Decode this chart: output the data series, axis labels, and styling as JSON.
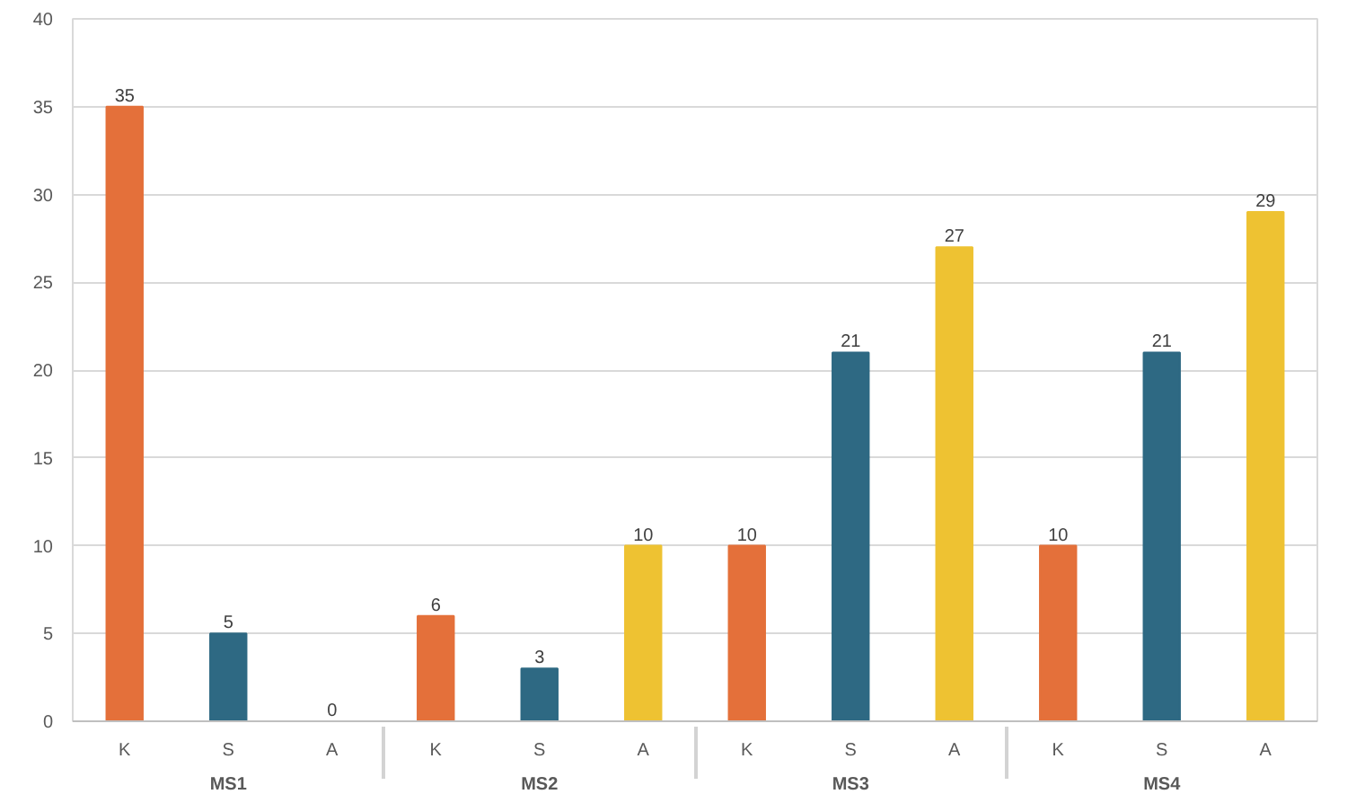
{
  "chart_data": {
    "type": "bar",
    "categories": [
      "MS1",
      "MS2",
      "MS3",
      "MS4"
    ],
    "series": [
      {
        "name": "K",
        "color": "#e4703a",
        "values": [
          35,
          6,
          10,
          10
        ]
      },
      {
        "name": "S",
        "color": "#2e6983",
        "values": [
          5,
          3,
          21,
          21
        ]
      },
      {
        "name": "A",
        "color": "#eec232",
        "values": [
          0,
          10,
          27,
          29
        ]
      }
    ],
    "ylim": [
      0,
      40
    ],
    "yticks": [
      0,
      5,
      10,
      15,
      20,
      25,
      30,
      35,
      40
    ],
    "grid": "y",
    "data_labels": true
  }
}
